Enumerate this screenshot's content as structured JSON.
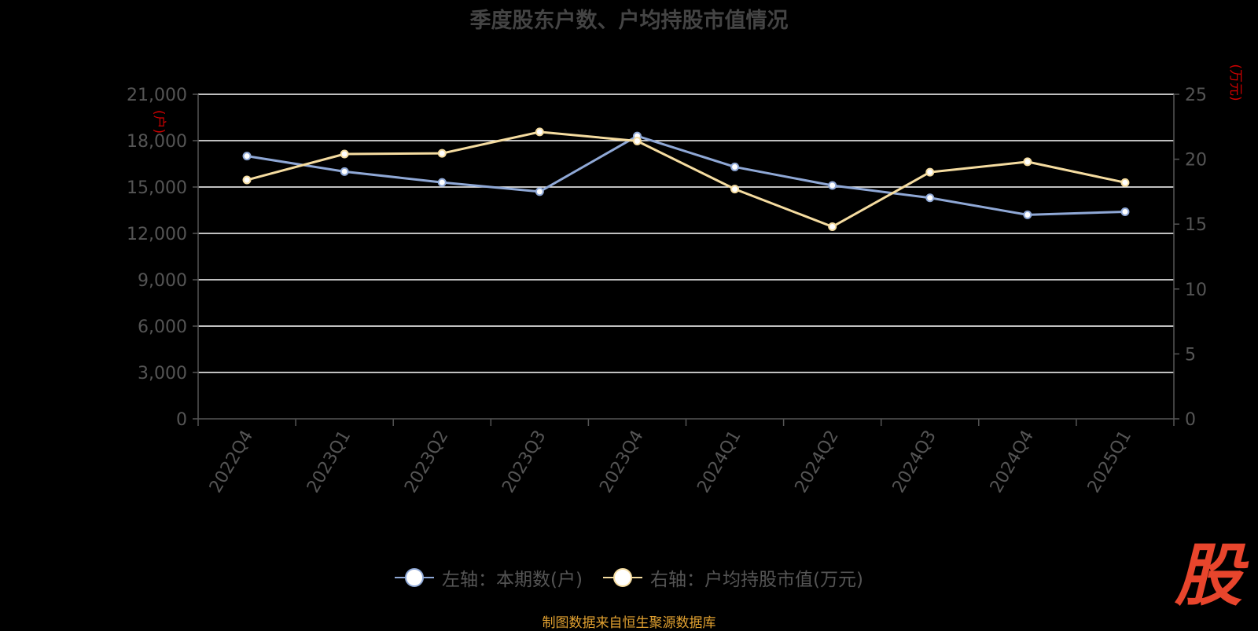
{
  "title": "季度股东户数、户均持股市值情况",
  "source": "制图数据来自恒生聚源数据库",
  "watermark": "股",
  "legend": {
    "left_label": "左轴：本期数(户)",
    "right_label": "右轴：户均持股市值(万元)"
  },
  "colors": {
    "left_series": "#8fa8d6",
    "right_series": "#f5dca0",
    "axis_unit": "#cc0000",
    "grid": "#ffffff",
    "axis_text": "#555555"
  },
  "chart_data": {
    "type": "line",
    "title": "季度股东户数、户均持股市值情况",
    "categories": [
      "2022Q4",
      "2023Q1",
      "2023Q2",
      "2023Q3",
      "2023Q4",
      "2024Q1",
      "2024Q2",
      "2024Q3",
      "2024Q4",
      "2025Q1"
    ],
    "left_axis": {
      "unit": "(户)",
      "ylim": [
        0,
        21000
      ],
      "ticks": [
        "0",
        "3,000",
        "6,000",
        "9,000",
        "12,000",
        "15,000",
        "18,000",
        "21,000"
      ]
    },
    "right_axis": {
      "unit": "(万元)",
      "ylim": [
        0,
        25
      ],
      "ticks": [
        "0",
        "5",
        "10",
        "15",
        "20",
        "25"
      ]
    },
    "series": [
      {
        "name": "左轴：本期数(户)",
        "axis": "left",
        "values": [
          17000,
          16000,
          15300,
          14700,
          18300,
          16300,
          15100,
          14300,
          13200,
          13400
        ]
      },
      {
        "name": "右轴：户均持股市值(万元)",
        "axis": "right",
        "values": [
          18.4,
          20.4,
          20.45,
          22.1,
          21.4,
          17.7,
          14.8,
          19.0,
          19.8,
          18.2
        ]
      }
    ],
    "grid": true,
    "legend_position": "bottom"
  }
}
